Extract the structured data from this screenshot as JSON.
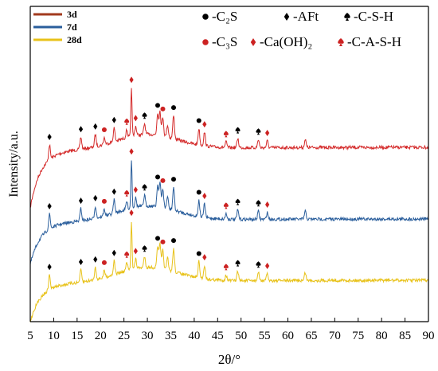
{
  "chart_data": {
    "type": "line",
    "xlabel": "2θ/°",
    "ylabel": "Intensity/a.u.",
    "xlim": [
      5,
      90
    ],
    "x_ticks": [
      "5",
      "10",
      "15",
      "20",
      "25",
      "30",
      "35",
      "40",
      "45",
      "50",
      "55",
      "60",
      "65",
      "70",
      "75",
      "80",
      "85",
      "90"
    ],
    "grid": false,
    "legend_position": "top-left",
    "series": [
      {
        "name": "3d",
        "color": "#d42a2a",
        "legend_color": "#a23a1e"
      },
      {
        "name": "7d",
        "color": "#2a5e9c",
        "legend_color": "#2a5e9c"
      },
      {
        "name": "28d",
        "color": "#e8c21a",
        "legend_color": "#e8c21a"
      }
    ],
    "phase_legend": [
      {
        "label": "-C₂S",
        "symbol": "circle",
        "color": "#000000"
      },
      {
        "label": "-AFt",
        "symbol": "diamond",
        "color": "#000000"
      },
      {
        "label": "-C-S-H",
        "symbol": "spade",
        "color": "#000000"
      },
      {
        "label": "-C₃S",
        "symbol": "circle",
        "color": "#cc2222"
      },
      {
        "label": "-Ca(OH)₂",
        "symbol": "diamond",
        "color": "#cc2222"
      },
      {
        "label": "-C-A-S-H",
        "symbol": "spade",
        "color": "#cc2222"
      }
    ],
    "peaks": [
      {
        "x": 9.1,
        "height": 0.55,
        "marker": "AFt"
      },
      {
        "x": 15.8,
        "height": 0.45,
        "marker": "AFt"
      },
      {
        "x": 18.9,
        "height": 0.45,
        "marker": "AFt"
      },
      {
        "x": 20.8,
        "height": 0.25,
        "marker": "C3S"
      },
      {
        "x": 22.9,
        "height": 0.5,
        "marker": "AFt"
      },
      {
        "x": 25.6,
        "height": 0.3,
        "marker": "CASH"
      },
      {
        "x": 26.6,
        "height": 1.8,
        "marker": "CaOH2"
      },
      {
        "x": 27.5,
        "height": 0.35,
        "marker": "CaOH2"
      },
      {
        "x": 29.4,
        "height": 0.4,
        "marker": "CSH"
      },
      {
        "x": 32.2,
        "height": 0.8,
        "marker": "C2S"
      },
      {
        "x": 32.7,
        "height": 0.9,
        "marker": null
      },
      {
        "x": 33.3,
        "height": 0.7,
        "marker": "C3S"
      },
      {
        "x": 34.3,
        "height": 0.45,
        "marker": null
      },
      {
        "x": 35.6,
        "height": 0.85,
        "marker": "C2S"
      },
      {
        "x": 41.0,
        "height": 0.6,
        "marker": "C2S"
      },
      {
        "x": 42.2,
        "height": 0.5,
        "marker": "CaOH2"
      },
      {
        "x": 46.8,
        "height": 0.2,
        "marker": "CASH"
      },
      {
        "x": 49.3,
        "height": 0.35,
        "marker": "CSH"
      },
      {
        "x": 53.7,
        "height": 0.3,
        "marker": "CSH"
      },
      {
        "x": 55.6,
        "height": 0.25,
        "marker": "CaOH2"
      },
      {
        "x": 63.7,
        "height": 0.3,
        "marker": null
      }
    ]
  }
}
